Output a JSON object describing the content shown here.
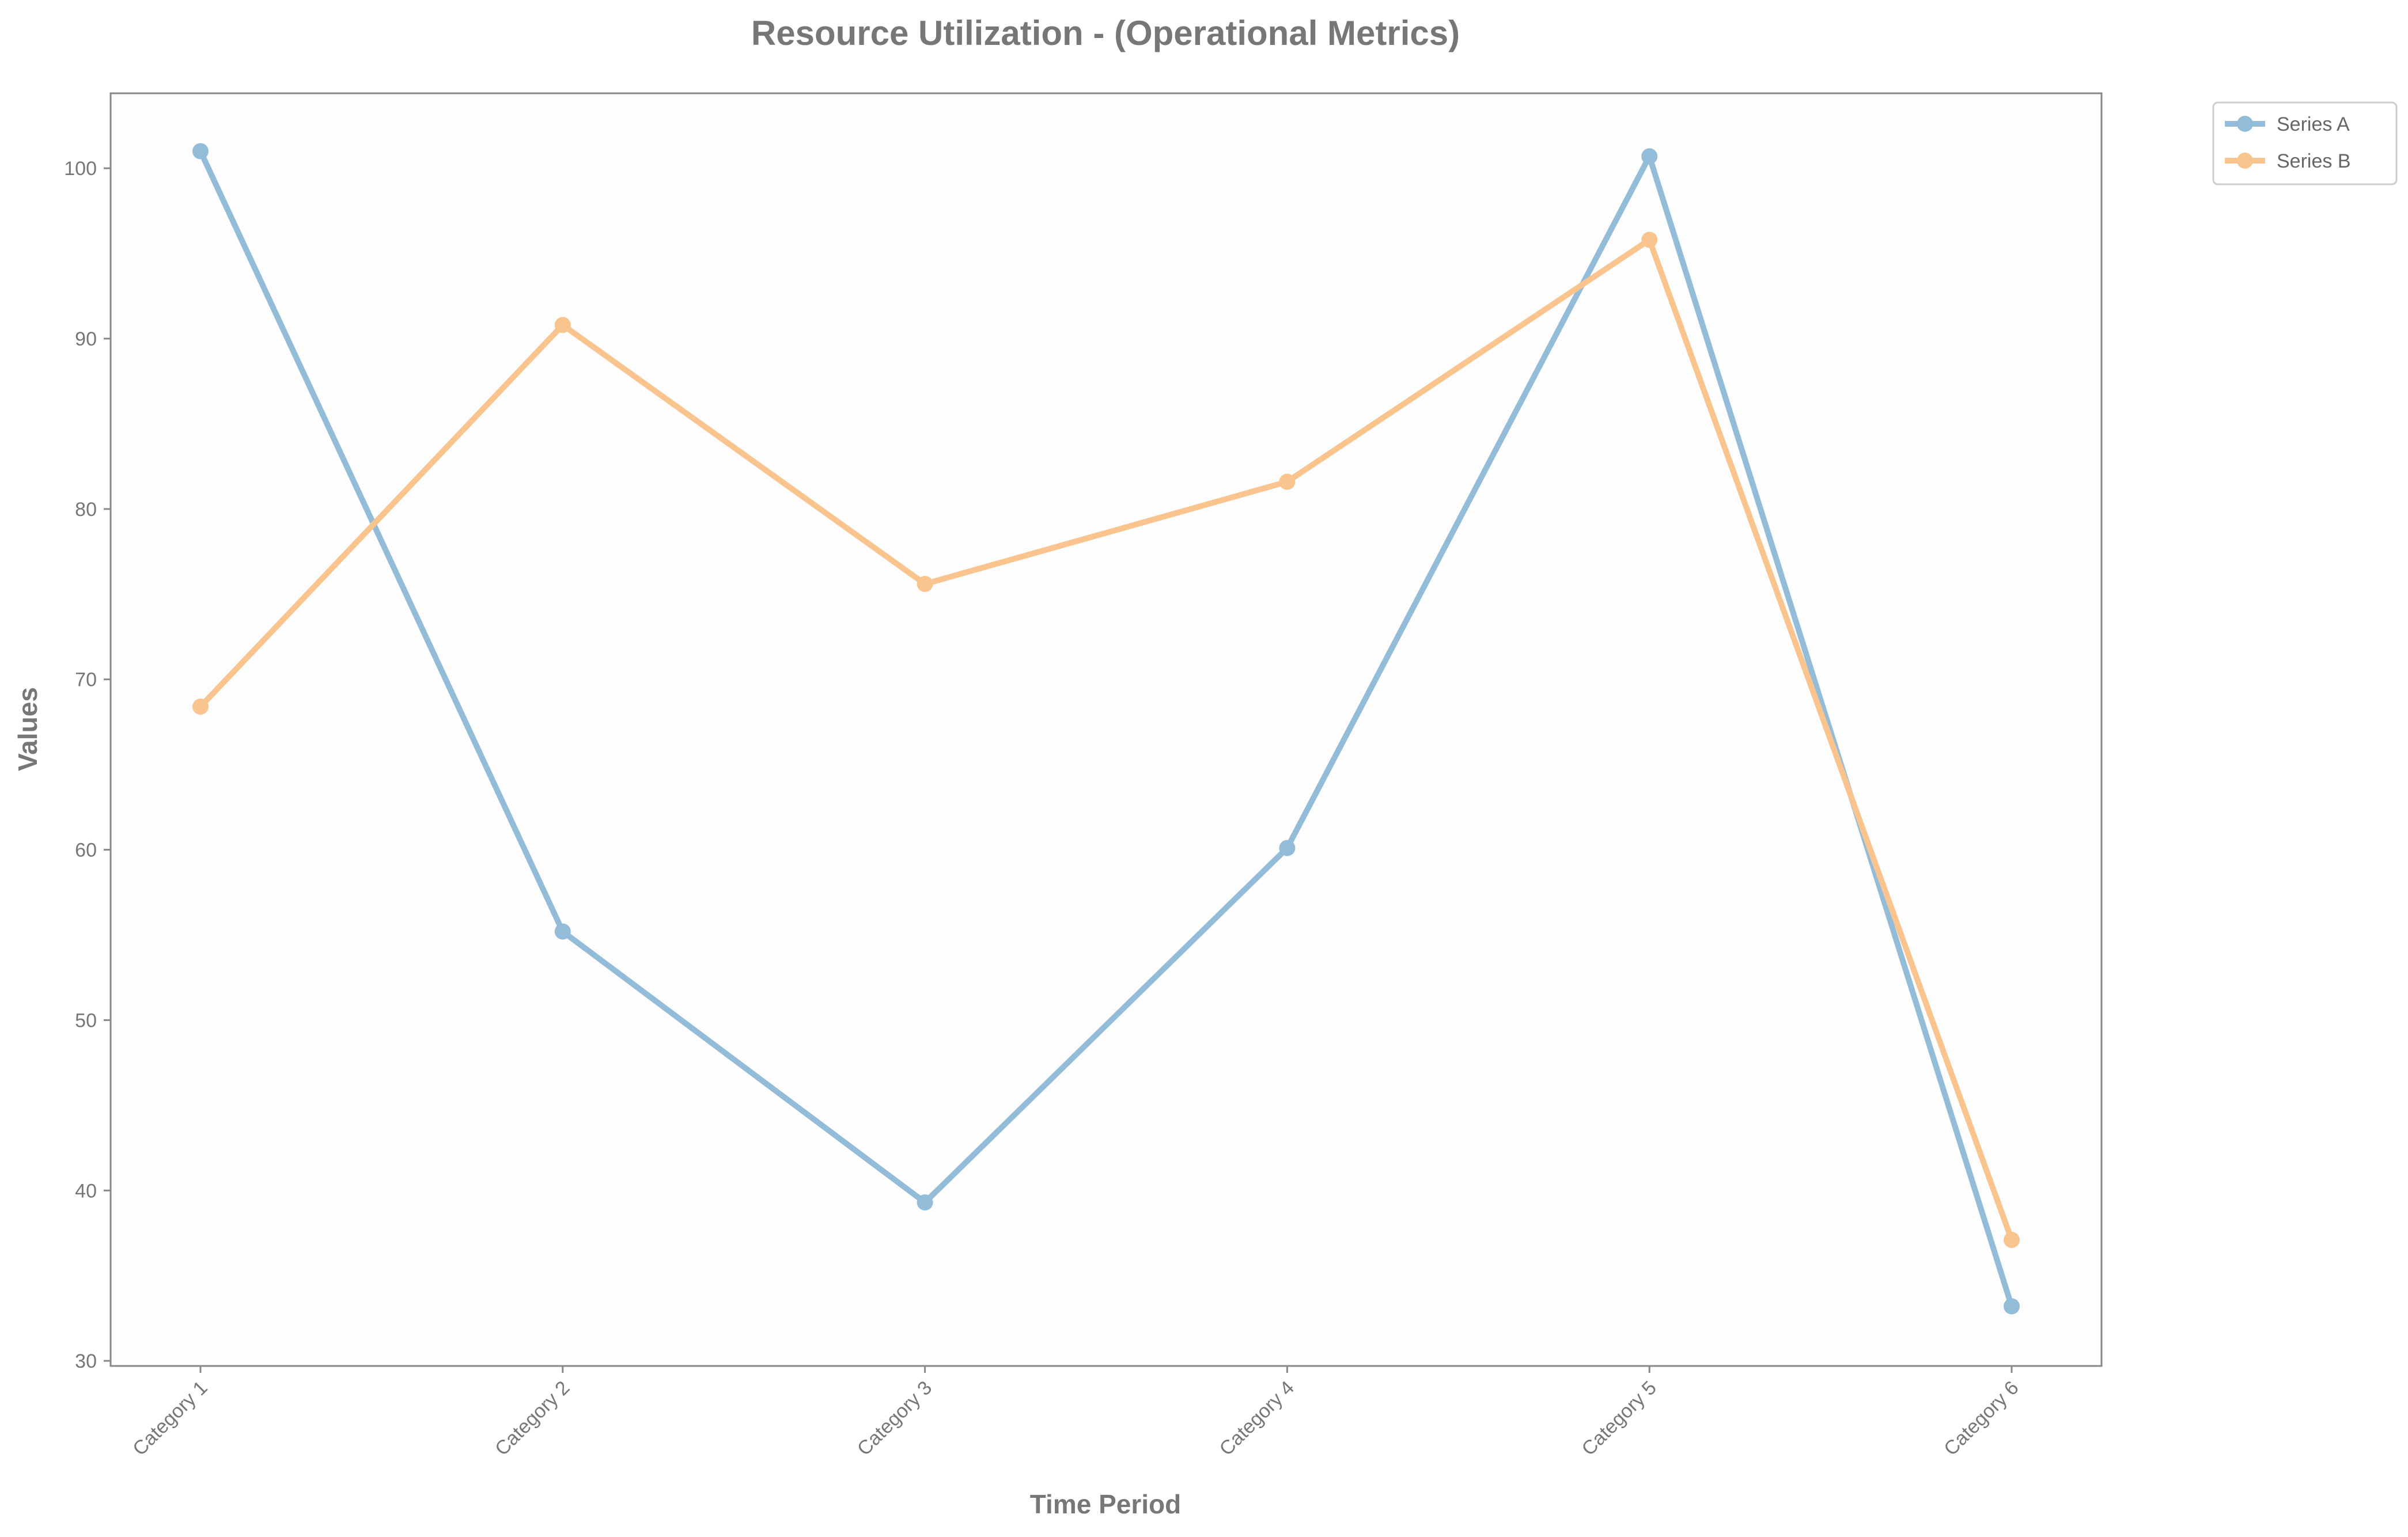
{
  "chart_data": {
    "type": "line",
    "title": "Resource Utilization - (Operational Metrics)",
    "xlabel": "Time Period",
    "ylabel": "Values",
    "categories": [
      "Category 1",
      "Category 2",
      "Category 3",
      "Category 4",
      "Category 5",
      "Category 6"
    ],
    "ylim": [
      29.7,
      104.4
    ],
    "yticks": [
      30,
      40,
      50,
      60,
      70,
      80,
      90,
      100
    ],
    "grid": false,
    "legend_position": "outside-top-right",
    "series": [
      {
        "name": "Series A",
        "color": "#93bcd9",
        "values": [
          101.0,
          55.2,
          39.3,
          60.1,
          100.7,
          33.2
        ]
      },
      {
        "name": "Series B",
        "color": "#fac48e",
        "values": [
          68.4,
          90.8,
          75.6,
          81.6,
          95.8,
          37.1
        ]
      }
    ]
  }
}
